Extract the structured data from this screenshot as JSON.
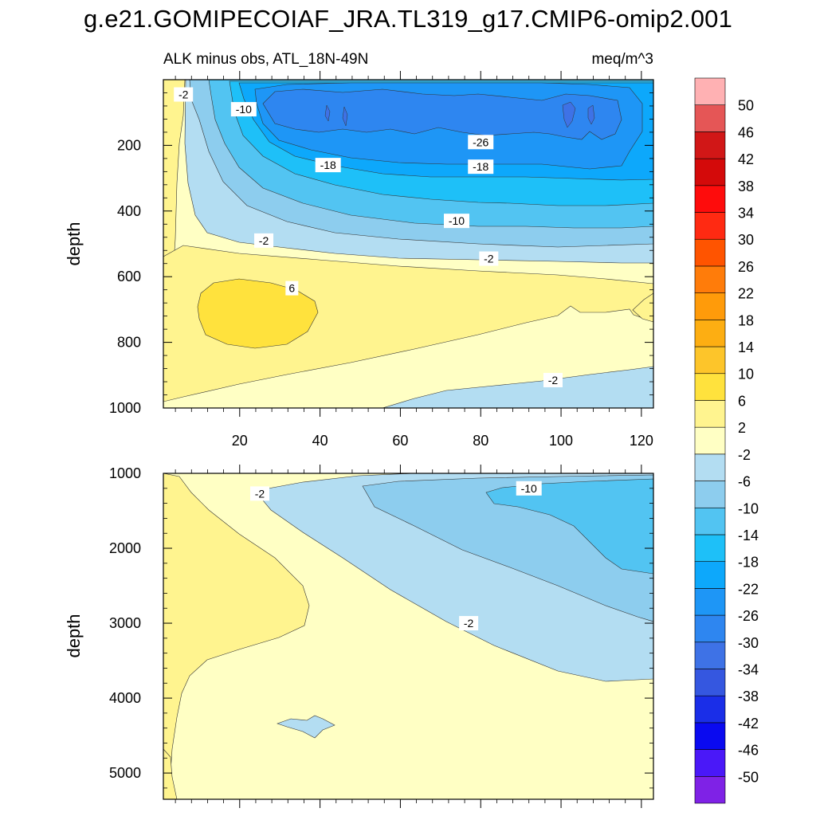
{
  "title": "g.e21.GOMIPECOIAF_JRA.TL319_g17.CMIP6-omip2.001",
  "chart_data": {
    "type": "contour",
    "variable": "ALK minus obs",
    "region": "ATL_18N-49N",
    "subtitle_left": "ALK minus obs, ATL_18N-49N",
    "units": "meq/m^3",
    "xlim": [
      1,
      123
    ],
    "x_ticks": [
      20,
      40,
      60,
      80,
      100,
      120
    ],
    "panels": [
      {
        "name": "upper",
        "ylabel": "depth",
        "ylim": [
          0,
          1000
        ],
        "y_ticks": [
          200,
          400,
          600,
          800,
          1000
        ],
        "contour_labels": [
          {
            "text": "-2",
            "x": 6,
            "y": 45
          },
          {
            "text": "-10",
            "x": 21,
            "y": 90
          },
          {
            "text": "-18",
            "x": 42,
            "y": 260
          },
          {
            "text": "-26",
            "x": 80,
            "y": 190
          },
          {
            "text": "-18",
            "x": 80,
            "y": 265
          },
          {
            "text": "-10",
            "x": 74,
            "y": 430
          },
          {
            "text": "-2",
            "x": 26,
            "y": 490
          },
          {
            "text": "-2",
            "x": 82,
            "y": 545
          },
          {
            "text": "6",
            "x": 33,
            "y": 635
          },
          {
            "text": "-2",
            "x": 98,
            "y": 915
          }
        ]
      },
      {
        "name": "lower",
        "ylabel": "depth",
        "ylim": [
          1000,
          5350
        ],
        "y_ticks": [
          1000,
          2000,
          3000,
          4000,
          5000
        ],
        "contour_labels": [
          {
            "text": "-2",
            "x": 25,
            "y": 1270
          },
          {
            "text": "-10",
            "x": 92,
            "y": 1200
          },
          {
            "text": "-2",
            "x": 77,
            "y": 3000
          }
        ]
      }
    ],
    "colorbar": {
      "levels": [
        -50,
        -46,
        -42,
        -38,
        -34,
        -30,
        -26,
        -22,
        -18,
        -14,
        -10,
        -6,
        -2,
        2,
        6,
        10,
        14,
        18,
        22,
        26,
        30,
        34,
        38,
        42,
        46,
        50
      ],
      "colors": [
        "#7f22e6",
        "#4a18f8",
        "#0a0af0",
        "#1a2ee8",
        "#3557e0",
        "#3e72e6",
        "#2e86f0",
        "#1e96f6",
        "#0da8fb",
        "#1ec0f8",
        "#52c4f2",
        "#8dcdee",
        "#b3ddf2",
        "#ffffc4",
        "#fff48f",
        "#ffe23d",
        "#fdc52a",
        "#fdae12",
        "#ff9b0a",
        "#ff7c0a",
        "#ff5400",
        "#ff2a12",
        "#fe0c0c",
        "#d40a0a",
        "#d11717",
        "#e55656",
        "#ffb1b3"
      ]
    }
  }
}
